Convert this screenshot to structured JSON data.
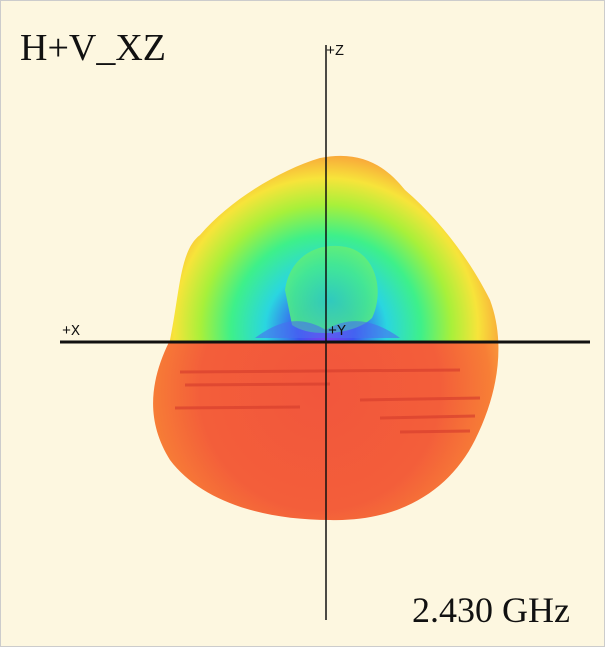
{
  "title": "H+V_XZ",
  "axes": {
    "z": "+Z",
    "x": "+X",
    "y": "+Y"
  },
  "frequency": "2.430 GHz"
}
